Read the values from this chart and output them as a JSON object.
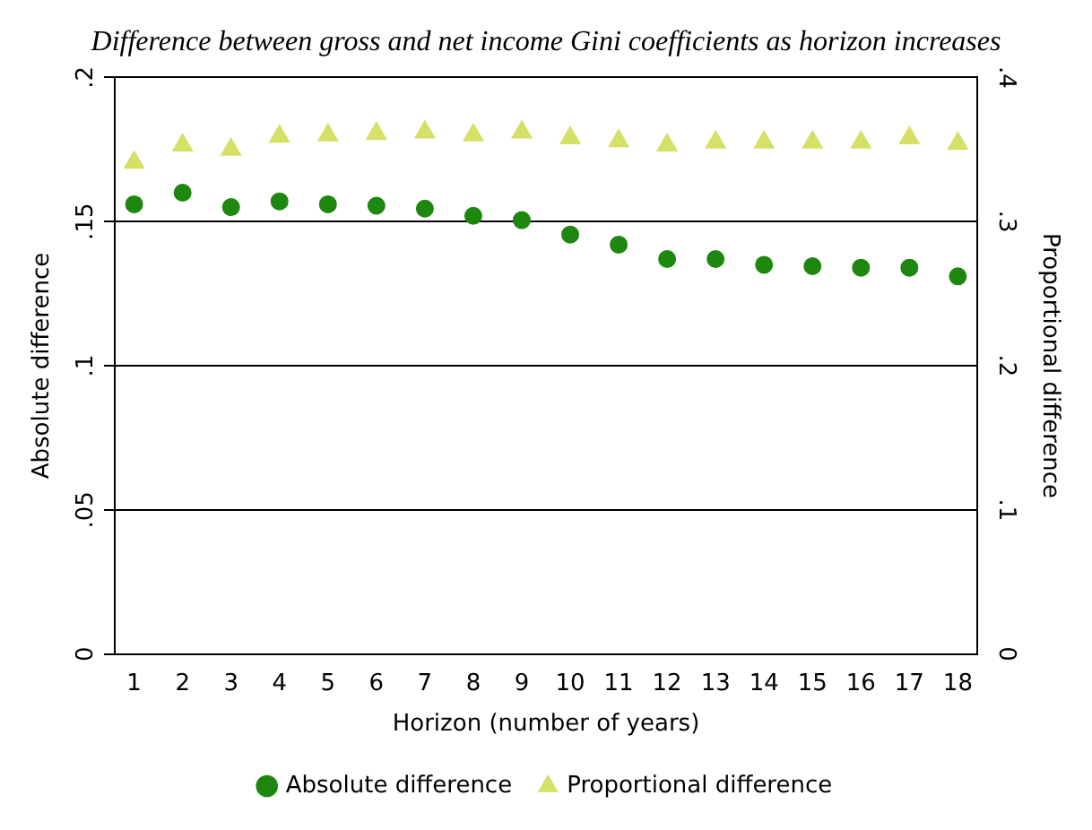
{
  "chart_data": {
    "type": "scatter",
    "title": "Difference between gross and net income Gini coefficients as horizon increases",
    "xlabel": "Horizon (number of years)",
    "ylabel": "Absolute difference",
    "y2label": "Proportional difference",
    "x": [
      1,
      2,
      3,
      4,
      5,
      6,
      7,
      8,
      9,
      10,
      11,
      12,
      13,
      14,
      15,
      16,
      17,
      18
    ],
    "series": [
      {
        "name": "Absolute difference",
        "color": "#1e870f",
        "marker": "circle",
        "values": [
          0.156,
          0.16,
          0.155,
          0.157,
          0.156,
          0.1555,
          0.1545,
          0.152,
          0.1505,
          0.1455,
          0.142,
          0.137,
          0.137,
          0.135,
          0.1345,
          0.134,
          0.134,
          0.131
        ]
      },
      {
        "name": "Proportional difference",
        "color": "#d5e066",
        "marker": "triangle",
        "axis": "y2",
        "values": [
          0.341,
          0.353,
          0.35,
          0.359,
          0.36,
          0.361,
          0.362,
          0.36,
          0.362,
          0.358,
          0.356,
          0.353,
          0.355,
          0.355,
          0.355,
          0.355,
          0.358,
          0.354
        ]
      }
    ],
    "xlim": [
      0.6,
      18.4
    ],
    "xticks": [
      1,
      2,
      3,
      4,
      5,
      6,
      7,
      8,
      9,
      10,
      11,
      12,
      13,
      14,
      15,
      16,
      17,
      18
    ],
    "ylim": [
      0,
      0.2
    ],
    "yticks": [
      0,
      {
        "value": 0.05,
        "label": ".05"
      },
      {
        "value": 0.1,
        "label": ".1"
      },
      {
        "value": 0.15,
        "label": ".15"
      },
      {
        "value": 0.2,
        "label": ".2"
      }
    ],
    "y2lim": [
      0,
      0.4
    ],
    "y2ticks": [
      0,
      {
        "value": 0.1,
        "label": ".1"
      },
      {
        "value": 0.2,
        "label": ".2"
      },
      {
        "value": 0.3,
        "label": ".3"
      },
      {
        "value": 0.4,
        "label": ".4"
      }
    ],
    "grid": "y",
    "legend": "bottom"
  }
}
